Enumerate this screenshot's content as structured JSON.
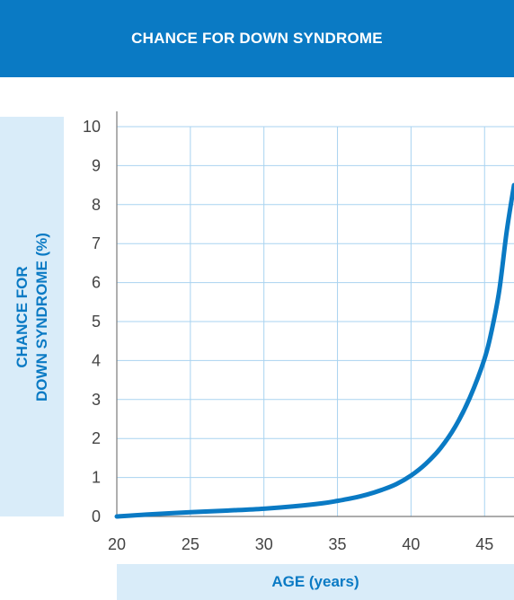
{
  "chart_data": {
    "type": "line",
    "title": "CHANCE FOR DOWN SYNDROME",
    "ylabel_lines": [
      "CHANCE FOR",
      "DOWN SYNDROME (%)"
    ],
    "xlabel": "AGE (years)",
    "x_ticks": [
      "20",
      "25",
      "30",
      "35",
      "40",
      "45"
    ],
    "y_ticks": [
      "0",
      "1",
      "2",
      "3",
      "4",
      "5",
      "6",
      "7",
      "8",
      "9",
      "10"
    ],
    "xlim": [
      20,
      47
    ],
    "ylim": [
      0,
      10
    ],
    "grid": true,
    "series": [
      {
        "x": [
          20,
          22,
          25,
          28,
          30,
          32,
          34,
          35,
          36,
          37,
          38,
          39,
          40,
          41,
          42,
          43,
          44,
          45,
          45.5,
          46,
          46.5,
          47
        ],
        "values": [
          0.0,
          0.05,
          0.11,
          0.16,
          0.2,
          0.26,
          0.34,
          0.4,
          0.47,
          0.56,
          0.68,
          0.83,
          1.05,
          1.35,
          1.75,
          2.3,
          3.05,
          4.05,
          4.8,
          5.8,
          7.3,
          8.5
        ]
      }
    ]
  },
  "colors": {
    "accent": "#0a7ac4",
    "label_bg": "#d9ecf9",
    "grid": "#a9d3f0",
    "axis": "#7a7a7a",
    "tick_text": "#444444"
  }
}
